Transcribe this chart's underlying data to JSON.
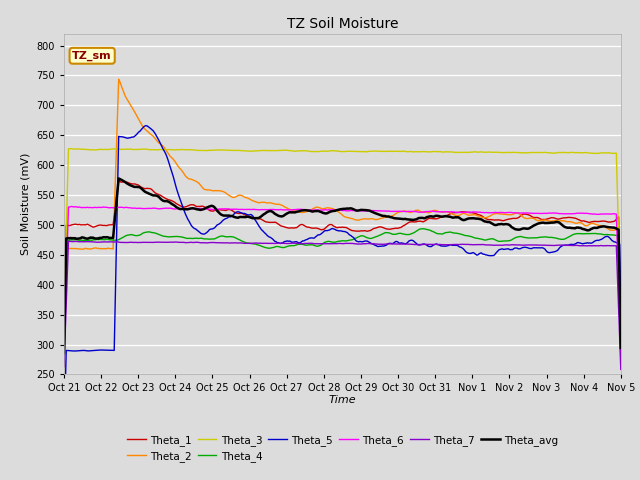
{
  "title": "TZ Soil Moisture",
  "ylabel": "Soil Moisture (mV)",
  "xlabel": "Time",
  "ylim": [
    250,
    820
  ],
  "yticks": [
    250,
    300,
    350,
    400,
    450,
    500,
    550,
    600,
    650,
    700,
    750,
    800
  ],
  "bg_color": "#dcdcdc",
  "series_colors": {
    "Theta_1": "#cc0000",
    "Theta_2": "#ff8800",
    "Theta_3": "#cccc00",
    "Theta_4": "#00aa00",
    "Theta_5": "#0000cc",
    "Theta_6": "#ff00ff",
    "Theta_7": "#8800cc",
    "Theta_avg": "#000000"
  },
  "num_points": 500,
  "date_labels": [
    "Oct 21",
    "Oct 22",
    "Oct 23",
    "Oct 24",
    "Oct 25",
    "Oct 26",
    "Oct 27",
    "Oct 28",
    "Oct 29",
    "Oct 30",
    "Oct 31",
    "Nov 1",
    "Nov 2",
    "Nov 3",
    "Nov 4",
    "Nov 5"
  ],
  "spike_index": 47,
  "legend_box_color": "#ffffcc",
  "legend_box_edge": "#cc8800",
  "legend_box_text": "TZ_sm"
}
